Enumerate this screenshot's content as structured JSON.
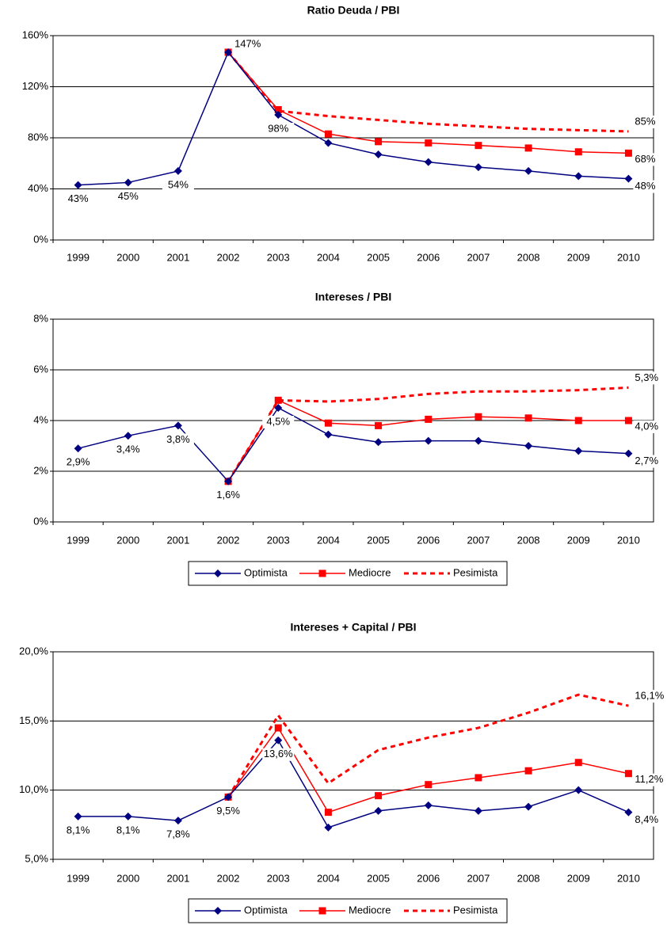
{
  "chart_data": [
    {
      "type": "line",
      "title": "Ratio Deuda / PBI",
      "categories": [
        "1999",
        "2000",
        "2001",
        "2002",
        "2003",
        "2004",
        "2005",
        "2006",
        "2007",
        "2008",
        "2009",
        "2010"
      ],
      "ylim": [
        0,
        160
      ],
      "yticks": [
        {
          "value": 0,
          "label": "0%"
        },
        {
          "value": 40,
          "label": "40%"
        },
        {
          "value": 80,
          "label": "80%"
        },
        {
          "value": 120,
          "label": "120%"
        },
        {
          "value": 160,
          "label": "160%"
        }
      ],
      "grid": true,
      "series": [
        {
          "name": "Optimista",
          "color": "#000080",
          "marker": "diamond",
          "values": [
            43,
            45,
            54,
            147,
            98,
            76,
            67,
            61,
            57,
            54,
            50,
            48
          ],
          "value_labels": [
            "43%",
            "45%",
            "54%",
            "147%",
            "98%",
            null,
            null,
            null,
            null,
            null,
            null,
            "48%"
          ]
        },
        {
          "name": "Mediocre",
          "color": "#ff0000",
          "marker": "square",
          "values": [
            null,
            null,
            null,
            147,
            102,
            83,
            77,
            76,
            74,
            72,
            69,
            68
          ],
          "value_labels": [
            null,
            null,
            null,
            null,
            null,
            null,
            null,
            null,
            null,
            null,
            null,
            "68%"
          ]
        },
        {
          "name": "Pesimista",
          "color": "#ff0000",
          "dashed": true,
          "values": [
            null,
            null,
            null,
            147,
            101,
            97,
            94,
            91,
            89,
            87,
            86,
            85
          ],
          "value_labels": [
            null,
            null,
            null,
            null,
            null,
            null,
            null,
            null,
            null,
            null,
            null,
            "85%"
          ]
        }
      ]
    },
    {
      "type": "line",
      "title": "Intereses / PBI",
      "categories": [
        "1999",
        "2000",
        "2001",
        "2002",
        "2003",
        "2004",
        "2005",
        "2006",
        "2007",
        "2008",
        "2009",
        "2010"
      ],
      "ylim": [
        0,
        8
      ],
      "yticks": [
        {
          "value": 0,
          "label": "0%"
        },
        {
          "value": 2,
          "label": "2%"
        },
        {
          "value": 4,
          "label": "4%"
        },
        {
          "value": 6,
          "label": "6%"
        },
        {
          "value": 8,
          "label": "8%"
        }
      ],
      "grid": true,
      "legend": "bottom",
      "series": [
        {
          "name": "Optimista",
          "color": "#000080",
          "marker": "diamond",
          "values": [
            2.9,
            3.4,
            3.8,
            1.6,
            4.5,
            3.45,
            3.15,
            3.2,
            3.2,
            3.0,
            2.8,
            2.7
          ],
          "value_labels": [
            "2,9%",
            "3,4%",
            "3,8%",
            "1,6%",
            "4,5%",
            null,
            null,
            null,
            null,
            null,
            null,
            "2,7%"
          ]
        },
        {
          "name": "Mediocre",
          "color": "#ff0000",
          "marker": "square",
          "values": [
            null,
            null,
            null,
            1.6,
            4.8,
            3.9,
            3.8,
            4.05,
            4.15,
            4.1,
            4.0,
            4.0
          ],
          "value_labels": [
            null,
            null,
            null,
            null,
            null,
            null,
            null,
            null,
            null,
            null,
            null,
            "4,0%"
          ]
        },
        {
          "name": "Pesimista",
          "color": "#ff0000",
          "dashed": true,
          "values": [
            null,
            null,
            null,
            1.6,
            4.8,
            4.75,
            4.85,
            5.05,
            5.15,
            5.15,
            5.2,
            5.3
          ],
          "value_labels": [
            null,
            null,
            null,
            null,
            null,
            null,
            null,
            null,
            null,
            null,
            null,
            "5,3%"
          ]
        }
      ]
    },
    {
      "type": "line",
      "title": "Intereses + Capital / PBI",
      "categories": [
        "1999",
        "2000",
        "2001",
        "2002",
        "2003",
        "2004",
        "2005",
        "2006",
        "2007",
        "2008",
        "2009",
        "2010"
      ],
      "ylim": [
        5,
        20
      ],
      "yticks": [
        {
          "value": 5,
          "label": "5,0%"
        },
        {
          "value": 10,
          "label": "10,0%"
        },
        {
          "value": 15,
          "label": "15,0%"
        },
        {
          "value": 20,
          "label": "20,0%"
        }
      ],
      "grid": true,
      "legend": "bottom",
      "series": [
        {
          "name": "Optimista",
          "color": "#000080",
          "marker": "diamond",
          "values": [
            8.1,
            8.1,
            7.8,
            9.5,
            13.6,
            7.3,
            8.5,
            8.9,
            8.5,
            8.8,
            10.0,
            8.4
          ],
          "value_labels": [
            "8,1%",
            "8,1%",
            "7,8%",
            "9,5%",
            "13,6%",
            null,
            null,
            null,
            null,
            null,
            null,
            "8,4%"
          ]
        },
        {
          "name": "Mediocre",
          "color": "#ff0000",
          "marker": "square",
          "values": [
            null,
            null,
            null,
            9.5,
            14.5,
            8.4,
            9.6,
            10.4,
            10.9,
            11.4,
            12.0,
            11.2
          ],
          "value_labels": [
            null,
            null,
            null,
            null,
            null,
            null,
            null,
            null,
            null,
            null,
            null,
            "11,2%"
          ]
        },
        {
          "name": "Pesimista",
          "color": "#ff0000",
          "dashed": true,
          "values": [
            null,
            null,
            null,
            9.5,
            15.4,
            10.5,
            12.9,
            13.8,
            14.5,
            15.6,
            16.9,
            16.1
          ],
          "value_labels": [
            null,
            null,
            null,
            null,
            null,
            null,
            null,
            null,
            null,
            null,
            null,
            "16,1%"
          ]
        }
      ]
    }
  ]
}
